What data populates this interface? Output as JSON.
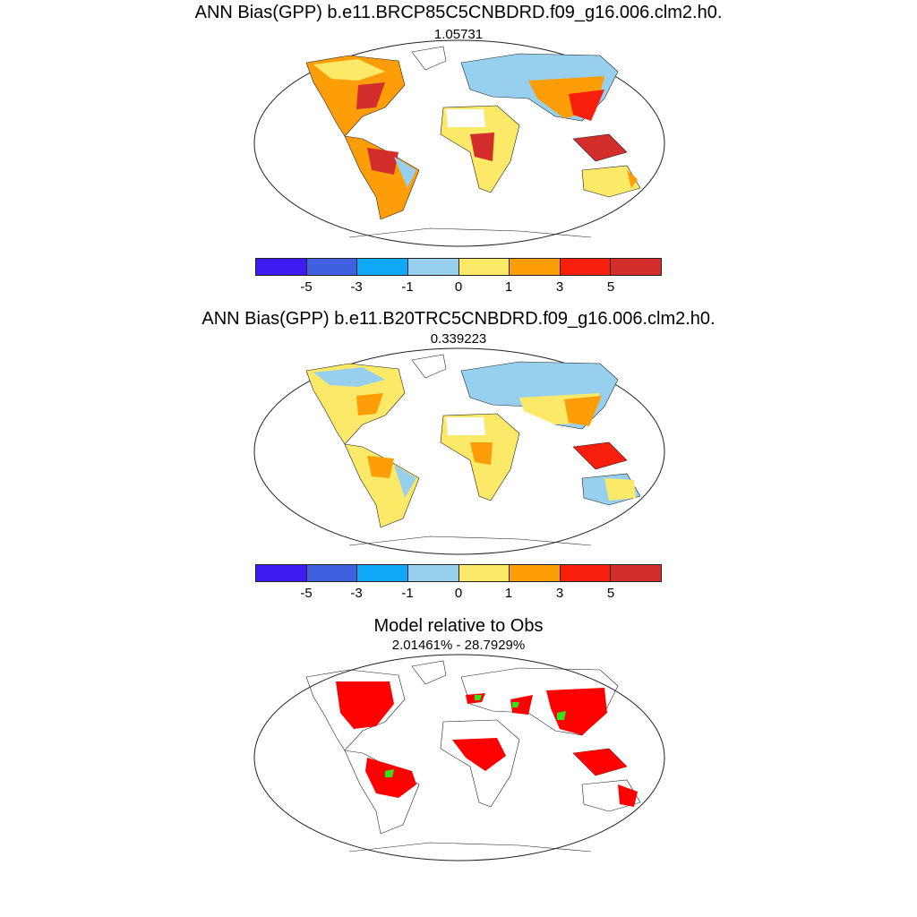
{
  "panels": [
    {
      "title": "ANN Bias(GPP) b.e11.BRCP85C5CNBDRD.f09_g16.006.clm2.h0.",
      "subtitle": "1.05731"
    },
    {
      "title": "ANN Bias(GPP) b.e11.B20TRC5CNBDRD.f09_g16.006.clm2.h0.",
      "subtitle": "0.339223"
    },
    {
      "title": "Model relative to Obs",
      "subtitle": "2.01461% - 28.7929%"
    }
  ],
  "colorbar": {
    "colors": [
      "#3f1bf2",
      "#4060e0",
      "#10a8f8",
      "#96d0ee",
      "#fde968",
      "#fd9e08",
      "#f8200c",
      "#d42e2c"
    ],
    "labels": [
      "-5",
      "-3",
      "-1",
      "0",
      "1",
      "3",
      "5"
    ]
  },
  "relative_map_colors": {
    "worse": "#ff0000",
    "better": "#32e21a"
  }
}
